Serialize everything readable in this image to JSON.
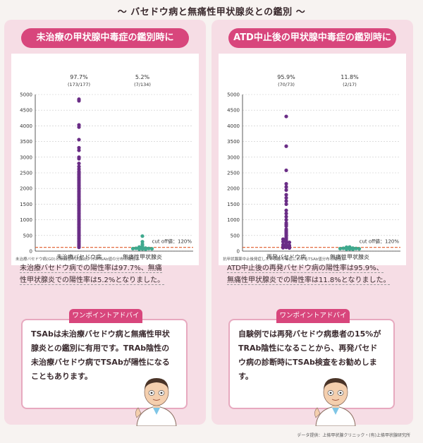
{
  "page_title": "〜 バセドウ病と無痛性甲状腺炎との鑑別 〜",
  "footer_credit": "データ提供：上條甲状腺クリニック・(有)上條甲状腺研究所",
  "panels": [
    {
      "header": "未治療の甲状腺中毒症の鑑別時に",
      "summary_line1": "未治療バセドウ病での陽性率は97.7%、無痛",
      "summary_line2": "性甲状腺炎での陽性率は5.2%となりました。",
      "chart_note": "未治療バセドウ病(GD)と無痛性甲状腺炎(PT)のTSAb値の分布と陽性率",
      "advice_tab": "ワンポイントアドバイス",
      "advice_text": "TSAbは未治療バセドウ病と無痛性甲状腺炎との鑑別に有用です。TRAb陰性の未治療バセドウ病でTSAbが陽性になることもあります。"
    },
    {
      "header": "ATD中止後の甲状腺中毒症の鑑別時に",
      "summary_line1": "ATD中止後の再発バセドウ病の陽性率は95.9%、",
      "summary_line2": "無痛性甲状腺炎での陽性率は11.8%となりました。",
      "chart_note": "抗甲状腺薬中止後発症した甲状腺中毒症におけるTSAb値分布と陽性率",
      "advice_tab": "ワンポイントアドバイス",
      "advice_text": "自験例では再発バセドウ病患者の15%がTRAb陰性になることから、再発バセドウ病の診断時にTSAb検査をお勧めします。"
    }
  ],
  "chart_data": [
    {
      "type": "scatter",
      "ylim": [
        0,
        5000
      ],
      "yticks": [
        0,
        500,
        1000,
        1500,
        2000,
        2500,
        3000,
        3500,
        4000,
        4500,
        5000
      ],
      "cutoff_label": "cut off値：120%",
      "cutoff_value": 120,
      "marker_colors": [
        "#6a2d86",
        "#3fa98e"
      ],
      "cutoff_color": "#e05a2a",
      "series": [
        {
          "name": "未治療バセドウ病",
          "rate": "97.7%",
          "count": "(173/177)",
          "values": [
            4850,
            4800,
            4030,
            3960,
            3560,
            3300,
            3220,
            3000,
            2950,
            2800,
            2700,
            2620,
            2550,
            2500,
            2450,
            2400,
            2350,
            2300,
            2250,
            2200,
            2150,
            2100,
            2050,
            2000,
            1950,
            1900,
            1850,
            1800,
            1750,
            1700,
            1650,
            1600,
            1550,
            1500,
            1450,
            1400,
            1350,
            1300,
            1250,
            1200,
            1150,
            1100,
            1050,
            1000,
            950,
            900,
            850,
            800,
            750,
            700,
            650,
            600,
            550,
            500,
            450,
            400,
            350,
            300,
            250,
            200,
            150,
            120
          ]
        },
        {
          "name": "無痛性甲状腺炎",
          "rate": "5.2%",
          "count": "(7/134)",
          "values": [
            480,
            300,
            220,
            160,
            130,
            110,
            100,
            95,
            90,
            85,
            80,
            75,
            70,
            65,
            60
          ]
        }
      ]
    },
    {
      "type": "scatter",
      "ylim": [
        0,
        5000
      ],
      "yticks": [
        0,
        500,
        1000,
        1500,
        2000,
        2500,
        3000,
        3500,
        4000,
        4500,
        5000
      ],
      "cutoff_label": "cut off値：120%",
      "cutoff_value": 120,
      "marker_colors": [
        "#6a2d86",
        "#3fa98e"
      ],
      "cutoff_color": "#e05a2a",
      "series": [
        {
          "name": "再発バセドウ病",
          "rate": "95.9%",
          "count": "(70/73)",
          "values": [
            4300,
            3350,
            2580,
            2150,
            2050,
            1950,
            1800,
            1700,
            1600,
            1500,
            1300,
            1200,
            1100,
            1000,
            900,
            850,
            800,
            700,
            650,
            600,
            550,
            500,
            450,
            400,
            380,
            350,
            320,
            300,
            280,
            250,
            220,
            200,
            180,
            160,
            140,
            130,
            120,
            110,
            100
          ]
        },
        {
          "name": "無痛性甲状腺炎",
          "rate": "11.8%",
          "count": "(2/17)",
          "values": [
            130,
            125,
            110,
            100,
            95,
            90,
            85,
            80,
            75,
            70,
            65,
            60
          ]
        }
      ]
    }
  ]
}
